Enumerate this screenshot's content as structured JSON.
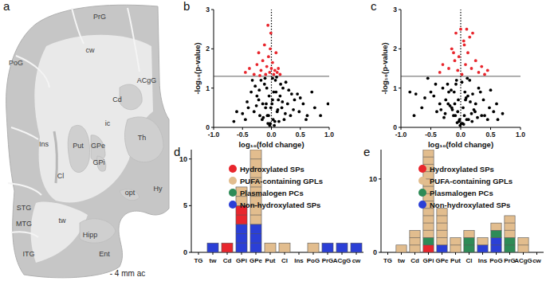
{
  "diagram": {
    "title": "a",
    "regions": [
      "PrG",
      "PoG",
      "cw",
      "ACgG",
      "Cd",
      "Th",
      "ic",
      "Put",
      "GPe",
      "GPi",
      "Ins",
      "Cl",
      "opt",
      "Hy",
      "STG",
      "MTG",
      "tw",
      "Hipp",
      "ITG",
      "Ent"
    ],
    "caption": "- 4 mm ac"
  },
  "chart_data": [
    {
      "type": "scatter",
      "title": "b",
      "x_label": "log₁₀(fold change)",
      "y_label": "-log₁₀(p-value)",
      "xlim": [
        -1,
        1
      ],
      "xticks": [
        {
          "value": -1,
          "label": "-1.0"
        },
        {
          "value": -0.5,
          "label": "-0.5"
        },
        {
          "value": 0,
          "label": "0.0"
        },
        {
          "value": 0.5,
          "label": "0.5"
        },
        {
          "value": 1,
          "label": "1.0"
        }
      ],
      "ylim": [
        0,
        3
      ],
      "yticks": [
        0,
        1,
        2,
        3
      ],
      "reference_lines": {
        "x": 0,
        "y": 1.3
      },
      "series": [
        {
          "color": "#000000",
          "marker": "circle",
          "x": [
            -0.02,
            0.03,
            -0.05,
            0.06,
            -0.1,
            0.1,
            -0.15,
            0.12,
            -0.2,
            0.18,
            -0.25,
            0.22,
            -0.3,
            0.28,
            -0.35,
            0.33,
            -0.4,
            0.4,
            -0.45,
            0.48,
            -0.08,
            0.08,
            -0.12,
            0.15,
            -0.18,
            0.2,
            -0.22,
            0.25,
            -0.28,
            0.3,
            -0.01,
            0.01,
            -0.04,
            0.04,
            -0.07,
            0.07,
            -0.09,
            0.11,
            -0.14,
            0.16,
            -0.5,
            0.55,
            -0.6,
            0.62,
            0.7,
            0.75,
            0.85,
            0.98,
            -0.65,
            0.5,
            0.35,
            -0.33,
            0.02,
            -0.03,
            0.05,
            -0.06,
            0.13,
            -0.16,
            0.24,
            -0.26,
            0.38,
            -0.42,
            0.45,
            0.6,
            0.02,
            -0.11,
            0.09,
            0.19,
            -0.21
          ],
          "values": [
            0.1,
            0.2,
            0.3,
            0.15,
            0.5,
            0.4,
            0.6,
            0.7,
            0.3,
            0.5,
            0.8,
            0.2,
            0.4,
            0.6,
            0.9,
            0.3,
            0.5,
            0.7,
            0.2,
            0.4,
            1.0,
            0.9,
            1.1,
            0.8,
            1.2,
            1.0,
            0.7,
            1.15,
            1.05,
            0.95,
            0.5,
            0.6,
            0.8,
            0.9,
            0.3,
            1.2,
            0.6,
            0.45,
            0.25,
            1.1,
            0.35,
            0.6,
            0.4,
            0.3,
            0.9,
            0.5,
            0.3,
            0.6,
            0.15,
            0.75,
            0.85,
            1.2,
            1.25,
            0.05,
            0.05,
            0.1,
            0.15,
            0.2,
            0.35,
            0.55,
            0.45,
            0.65,
            0.85,
            0.2,
            0.7,
            1.25,
            1.28,
            0.65,
            0.95
          ]
        },
        {
          "color": "#e8262d",
          "marker": "circle",
          "x": [
            -0.45,
            -0.38,
            -0.3,
            -0.25,
            -0.22,
            -0.18,
            -0.15,
            -0.12,
            -0.1,
            -0.08,
            -0.06,
            -0.05,
            -0.03,
            -0.02,
            0.0,
            0.02,
            0.04,
            0.06,
            0.08,
            0.1,
            0.12,
            0.15,
            -0.2,
            -0.01
          ],
          "values": [
            1.4,
            1.5,
            1.35,
            1.6,
            1.9,
            1.45,
            1.7,
            2.1,
            1.35,
            1.55,
            2.6,
            1.8,
            1.4,
            2.0,
            1.5,
            1.65,
            1.35,
            1.45,
            1.9,
            1.4,
            1.5,
            1.35,
            1.32,
            2.4
          ]
        }
      ]
    },
    {
      "type": "scatter",
      "title": "c",
      "x_label": "log₁₀(fold change)",
      "y_label": "-log₁₀(p-value)",
      "xlim": [
        -1,
        1
      ],
      "xticks": [
        {
          "value": -1,
          "label": "-1.0"
        },
        {
          "value": -0.5,
          "label": "-0.5"
        },
        {
          "value": 0,
          "label": "0.0"
        },
        {
          "value": 0.5,
          "label": "0.5"
        },
        {
          "value": 1,
          "label": "1.0"
        }
      ],
      "ylim": [
        0,
        3
      ],
      "yticks": [
        0,
        1,
        2,
        3
      ],
      "reference_lines": {
        "x": 0,
        "y": 1.3
      },
      "series": [
        {
          "color": "#000000",
          "marker": "circle",
          "x": [
            -0.02,
            0.03,
            -0.05,
            0.06,
            -0.1,
            0.1,
            -0.15,
            0.12,
            -0.2,
            0.18,
            -0.25,
            0.22,
            -0.3,
            0.28,
            -0.35,
            0.33,
            -0.4,
            0.4,
            -0.45,
            0.48,
            -0.08,
            0.08,
            -0.12,
            0.15,
            -0.18,
            0.2,
            -0.22,
            0.25,
            -0.28,
            0.3,
            -0.01,
            0.01,
            -0.04,
            0.04,
            -0.07,
            0.07,
            -0.09,
            0.11,
            -0.14,
            0.16,
            -0.5,
            0.55,
            -0.6,
            0.62,
            0.7,
            -0.75,
            -0.85,
            -0.78,
            -0.65,
            0.5,
            0.35,
            -0.33,
            0.02,
            -0.03,
            0.05,
            -0.06,
            0.13,
            -0.16,
            0.24,
            -0.26,
            0.38,
            -0.42,
            0.45,
            0.6,
            -0.55,
            -0.11,
            0.09,
            0.19,
            -0.21
          ],
          "values": [
            0.2,
            0.1,
            0.4,
            0.3,
            0.6,
            0.2,
            0.5,
            0.8,
            0.9,
            0.35,
            0.7,
            0.45,
            1.0,
            0.25,
            0.6,
            0.9,
            0.4,
            0.3,
            0.8,
            0.5,
            1.1,
            0.7,
            0.3,
            1.2,
            0.55,
            0.85,
            1.1,
            0.6,
            0.25,
            1.0,
            0.05,
            0.1,
            0.7,
            0.5,
            1.2,
            0.9,
            0.3,
            1.25,
            0.45,
            0.65,
            0.9,
            0.4,
            0.75,
            0.2,
            0.35,
            0.85,
            0.9,
            0.3,
            0.5,
            0.95,
            0.3,
            0.45,
            1.15,
            0.15,
            0.08,
            0.12,
            0.2,
            0.95,
            0.4,
            0.35,
            0.7,
            1.1,
            0.2,
            0.6,
            1.25,
            0.9,
            0.75,
            0.15,
            0.6
          ]
        },
        {
          "color": "#e8262d",
          "marker": "circle",
          "x": [
            -0.35,
            -0.3,
            -0.2,
            -0.15,
            -0.1,
            -0.08,
            -0.05,
            -0.03,
            0.0,
            0.02,
            0.05,
            0.08,
            0.1,
            0.12,
            0.15,
            0.18,
            0.2,
            0.25,
            0.3,
            0.35,
            0.4,
            0.45,
            -0.12,
            0.06
          ],
          "values": [
            1.4,
            1.6,
            1.5,
            2.0,
            1.7,
            2.4,
            1.45,
            1.8,
            2.5,
            1.35,
            2.2,
            1.6,
            2.5,
            1.9,
            2.3,
            1.5,
            2.4,
            1.7,
            1.4,
            1.55,
            1.35,
            1.45,
            1.9,
            2.1
          ]
        }
      ]
    },
    {
      "type": "bar",
      "title": "d",
      "stacked": true,
      "legend": "upper-left",
      "categories": [
        "TG",
        "tw",
        "Cd",
        "GPi",
        "GPe",
        "Put",
        "Cl",
        "Ins",
        "PoG",
        "PrG",
        "ACgG",
        "cw"
      ],
      "ylim": [
        0,
        11
      ],
      "yticks": [
        0,
        5,
        10
      ],
      "series": [
        {
          "name": "Hydroxylated SPs",
          "color": "#e8262d",
          "values": [
            0,
            0,
            1,
            2,
            0,
            0,
            0,
            0,
            0,
            0,
            0,
            0
          ]
        },
        {
          "name": "PUFA-containing GPLs",
          "color": "#e2bd8e",
          "values": [
            0,
            0,
            0,
            2,
            8,
            1,
            1,
            0,
            1,
            0,
            0,
            0
          ]
        },
        {
          "name": "Plasmalogen PCs",
          "color": "#2e8b57",
          "values": [
            0,
            0,
            0,
            0,
            0,
            0,
            0,
            0,
            0,
            0,
            0,
            0
          ]
        },
        {
          "name": "Non-hydroxylated SPs",
          "color": "#2b3fd6",
          "values": [
            0,
            1,
            0,
            3,
            3,
            0,
            0,
            0,
            0,
            1,
            1,
            1
          ]
        }
      ]
    },
    {
      "type": "bar",
      "title": "e",
      "stacked": true,
      "legend": "upper-left",
      "categories": [
        "TG",
        "tw",
        "Cd",
        "GPi",
        "GPe",
        "Put",
        "Cl",
        "Ins",
        "PoG",
        "PrG",
        "ACgG",
        "cw"
      ],
      "ylim": [
        0,
        14
      ],
      "yticks": [
        0,
        10
      ],
      "series": [
        {
          "name": "Hydroxylated SPs",
          "color": "#e8262d",
          "values": [
            0,
            0,
            0,
            1,
            0,
            0,
            0,
            0,
            0,
            0,
            0,
            0
          ]
        },
        {
          "name": "PUFA-containing GPLs",
          "color": "#e2bd8e",
          "values": [
            0,
            1,
            3,
            12,
            5,
            2,
            1,
            1,
            1,
            3,
            2,
            0
          ]
        },
        {
          "name": "Plasmalogen PCs",
          "color": "#2e8b57",
          "values": [
            0,
            0,
            0,
            1,
            0,
            0,
            2,
            0,
            1,
            2,
            0,
            0
          ]
        },
        {
          "name": "Non-hydroxylated SPs",
          "color": "#2b3fd6",
          "values": [
            0,
            0,
            0,
            0,
            1,
            0,
            0,
            1,
            2,
            0,
            0,
            0
          ]
        }
      ]
    }
  ]
}
